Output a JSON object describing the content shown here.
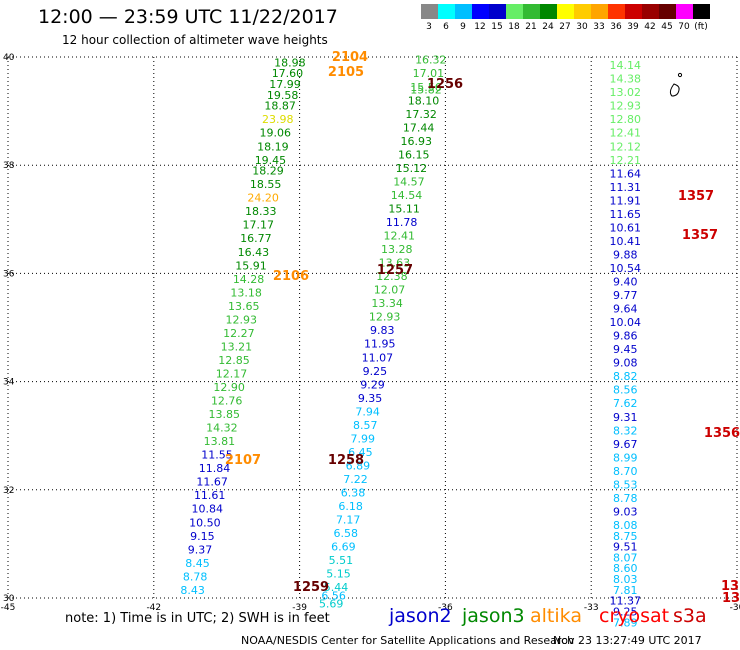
{
  "title": "12:00 — 23:59 UTC 11/22/2017",
  "subtitle": "12 hour collection of altimeter wave heights",
  "legend": {
    "colors": [
      "#888888",
      "#00ffff",
      "#00bfff",
      "#0000ff",
      "#0000cc",
      "#66ee66",
      "#33bb33",
      "#008800",
      "#ffff00",
      "#ffcc00",
      "#ffa500",
      "#ff3300",
      "#cc0000",
      "#990000",
      "#660000",
      "#ff00ff",
      "#000000"
    ],
    "labels": [
      "3",
      "6",
      "9",
      "12",
      "15",
      "18",
      "21",
      "24",
      "27",
      "30",
      "33",
      "36",
      "39",
      "42",
      "45",
      "70",
      "(ft)"
    ]
  },
  "map": {
    "lon_ticks": [
      "-45",
      "-42",
      "-39",
      "-36",
      "-33",
      "-30"
    ],
    "lat_ticks": [
      "40",
      "38",
      "36",
      "34",
      "32",
      "30"
    ]
  },
  "chart_data": {
    "type": "scatter",
    "xlabel": "",
    "ylabel": "",
    "xlim": [
      -45,
      -30
    ],
    "ylim": [
      30,
      40
    ],
    "grid": true,
    "series": [
      {
        "name": "jason2",
        "color": "#0000cc",
        "tracks": [
          {
            "id": "2104",
            "label_color": "#ff8c00"
          },
          {
            "id": "2105",
            "label_color": "#ff8c00"
          },
          {
            "id": "2106",
            "label_color": "#ff8c00"
          },
          {
            "id": "2107",
            "label_color": "#ff8c00"
          }
        ]
      },
      {
        "name": "jason3",
        "color": "#008800",
        "tracks": [
          {
            "id": "1256",
            "label_color": "#660000"
          },
          {
            "id": "1257",
            "label_color": "#660000"
          },
          {
            "id": "1258",
            "label_color": "#660000"
          },
          {
            "id": "1259",
            "label_color": "#660000"
          }
        ]
      },
      {
        "name": "altika",
        "color": "#ff8c00",
        "tracks": []
      },
      {
        "name": "cryosat",
        "color": "#ff0000",
        "tracks": [
          {
            "id": "1357",
            "label_color": "#cc0000"
          },
          {
            "id": "1356",
            "label_color": "#cc0000"
          },
          {
            "id": "13",
            "label_color": "#cc0000"
          }
        ]
      },
      {
        "name": "s3a",
        "color": "#cc0000",
        "tracks": []
      }
    ],
    "points": [
      {
        "v": "18.98",
        "c": "#008800",
        "lat": 39.9,
        "lon": -39.2
      },
      {
        "v": "17.60",
        "c": "#008800",
        "lat": 39.7,
        "lon": -39.25
      },
      {
        "v": "17.99",
        "c": "#008800",
        "lat": 39.5,
        "lon": -39.3
      },
      {
        "v": "19.58",
        "c": "#008800",
        "lat": 39.3,
        "lon": -39.35
      },
      {
        "v": "18.87",
        "c": "#008800",
        "lat": 39.1,
        "lon": -39.4
      },
      {
        "v": "23.98",
        "c": "#dddd00",
        "lat": 38.85,
        "lon": -39.45
      },
      {
        "v": "19.06",
        "c": "#008800",
        "lat": 38.6,
        "lon": -39.5
      },
      {
        "v": "18.19",
        "c": "#008800",
        "lat": 38.35,
        "lon": -39.55
      },
      {
        "v": "19.45",
        "c": "#008800",
        "lat": 38.1,
        "lon": -39.6
      },
      {
        "v": "18.29",
        "c": "#008800",
        "lat": 37.9,
        "lon": -39.65
      },
      {
        "v": "18.55",
        "c": "#008800",
        "lat": 37.65,
        "lon": -39.7
      },
      {
        "v": "24.20",
        "c": "#ffaa00",
        "lat": 37.4,
        "lon": -39.75
      },
      {
        "v": "18.33",
        "c": "#008800",
        "lat": 37.15,
        "lon": -39.8
      },
      {
        "v": "17.17",
        "c": "#008800",
        "lat": 36.9,
        "lon": -39.85
      },
      {
        "v": "16.77",
        "c": "#008800",
        "lat": 36.65,
        "lon": -39.9
      },
      {
        "v": "16.43",
        "c": "#008800",
        "lat": 36.4,
        "lon": -39.95
      },
      {
        "v": "15.91",
        "c": "#008800",
        "lat": 36.15,
        "lon": -40.0
      },
      {
        "v": "14.28",
        "c": "#33bb33",
        "lat": 35.9,
        "lon": -40.05
      },
      {
        "v": "13.18",
        "c": "#33bb33",
        "lat": 35.65,
        "lon": -40.1
      },
      {
        "v": "13.65",
        "c": "#33bb33",
        "lat": 35.4,
        "lon": -40.15
      },
      {
        "v": "12.93",
        "c": "#33bb33",
        "lat": 35.15,
        "lon": -40.2
      },
      {
        "v": "12.27",
        "c": "#33bb33",
        "lat": 34.9,
        "lon": -40.25
      },
      {
        "v": "13.21",
        "c": "#33bb33",
        "lat": 34.65,
        "lon": -40.3
      },
      {
        "v": "12.85",
        "c": "#33bb33",
        "lat": 34.4,
        "lon": -40.35
      },
      {
        "v": "12.17",
        "c": "#33bb33",
        "lat": 34.15,
        "lon": -40.4
      },
      {
        "v": "12.90",
        "c": "#33bb33",
        "lat": 33.9,
        "lon": -40.45
      },
      {
        "v": "12.76",
        "c": "#33bb33",
        "lat": 33.65,
        "lon": -40.5
      },
      {
        "v": "13.85",
        "c": "#33bb33",
        "lat": 33.4,
        "lon": -40.55
      },
      {
        "v": "14.32",
        "c": "#33bb33",
        "lat": 33.15,
        "lon": -40.6
      },
      {
        "v": "13.81",
        "c": "#33bb33",
        "lat": 32.9,
        "lon": -40.65
      },
      {
        "v": "11.55",
        "c": "#0000cc",
        "lat": 32.65,
        "lon": -40.7
      },
      {
        "v": "11.84",
        "c": "#0000cc",
        "lat": 32.4,
        "lon": -40.75
      },
      {
        "v": "11.67",
        "c": "#0000cc",
        "lat": 32.15,
        "lon": -40.8
      },
      {
        "v": "11.61",
        "c": "#0000cc",
        "lat": 31.9,
        "lon": -40.85
      },
      {
        "v": "10.84",
        "c": "#0000cc",
        "lat": 31.65,
        "lon": -40.9
      },
      {
        "v": "10.50",
        "c": "#0000cc",
        "lat": 31.4,
        "lon": -40.95
      },
      {
        "v": "9.15",
        "c": "#0000cc",
        "lat": 31.15,
        "lon": -41.0
      },
      {
        "v": "9.37",
        "c": "#0000cc",
        "lat": 30.9,
        "lon": -41.05
      },
      {
        "v": "8.45",
        "c": "#00bfff",
        "lat": 30.65,
        "lon": -41.1
      },
      {
        "v": "8.78",
        "c": "#00bfff",
        "lat": 30.4,
        "lon": -41.15
      },
      {
        "v": "8.43",
        "c": "#00bfff",
        "lat": 30.15,
        "lon": -41.2
      },
      {
        "v": "16.32",
        "c": "#33bb33",
        "lat": 39.95,
        "lon": -36.3
      },
      {
        "v": "17.01",
        "c": "#33bb33",
        "lat": 39.7,
        "lon": -36.35
      },
      {
        "v": "15.56",
        "c": "#33bb33",
        "lat": 39.45,
        "lon": -36.4
      },
      {
        "v": "15.82",
        "c": "#33bb33",
        "lat": 39.4,
        "lon": -36.4
      },
      {
        "v": "18.10",
        "c": "#008800",
        "lat": 39.2,
        "lon": -36.45
      },
      {
        "v": "17.32",
        "c": "#008800",
        "lat": 38.95,
        "lon": -36.5
      },
      {
        "v": "17.44",
        "c": "#008800",
        "lat": 38.7,
        "lon": -36.55
      },
      {
        "v": "16.93",
        "c": "#008800",
        "lat": 38.45,
        "lon": -36.6
      },
      {
        "v": "16.15",
        "c": "#008800",
        "lat": 38.2,
        "lon": -36.65
      },
      {
        "v": "15.12",
        "c": "#008800",
        "lat": 37.95,
        "lon": -36.7
      },
      {
        "v": "14.57",
        "c": "#33bb33",
        "lat": 37.7,
        "lon": -36.75
      },
      {
        "v": "14.54",
        "c": "#33bb33",
        "lat": 37.45,
        "lon": -36.8
      },
      {
        "v": "15.11",
        "c": "#008800",
        "lat": 37.2,
        "lon": -36.85
      },
      {
        "v": "11.78",
        "c": "#0000cc",
        "lat": 36.95,
        "lon": -36.9
      },
      {
        "v": "12.41",
        "c": "#33bb33",
        "lat": 36.7,
        "lon": -36.95
      },
      {
        "v": "13.28",
        "c": "#33bb33",
        "lat": 36.45,
        "lon": -37.0
      },
      {
        "v": "13.63",
        "c": "#33bb33",
        "lat": 36.2,
        "lon": -37.05
      },
      {
        "v": "12.38",
        "c": "#33bb33",
        "lat": 35.95,
        "lon": -37.1
      },
      {
        "v": "12.07",
        "c": "#33bb33",
        "lat": 35.7,
        "lon": -37.15
      },
      {
        "v": "13.34",
        "c": "#33bb33",
        "lat": 35.45,
        "lon": -37.2
      },
      {
        "v": "12.93",
        "c": "#33bb33",
        "lat": 35.2,
        "lon": -37.25
      },
      {
        "v": "9.83",
        "c": "#0000cc",
        "lat": 34.95,
        "lon": -37.3
      },
      {
        "v": "11.95",
        "c": "#0000cc",
        "lat": 34.7,
        "lon": -37.35
      },
      {
        "v": "11.07",
        "c": "#0000cc",
        "lat": 34.45,
        "lon": -37.4
      },
      {
        "v": "9.25",
        "c": "#0000cc",
        "lat": 34.2,
        "lon": -37.45
      },
      {
        "v": "9.29",
        "c": "#0000cc",
        "lat": 33.95,
        "lon": -37.5
      },
      {
        "v": "9.35",
        "c": "#0000cc",
        "lat": 33.7,
        "lon": -37.55
      },
      {
        "v": "7.94",
        "c": "#00bfff",
        "lat": 33.45,
        "lon": -37.6
      },
      {
        "v": "8.57",
        "c": "#00bfff",
        "lat": 33.2,
        "lon": -37.65
      },
      {
        "v": "7.99",
        "c": "#00bfff",
        "lat": 32.95,
        "lon": -37.7
      },
      {
        "v": "6.45",
        "c": "#00bfff",
        "lat": 32.7,
        "lon": -37.75
      },
      {
        "v": "6.89",
        "c": "#00bfff",
        "lat": 32.45,
        "lon": -37.8
      },
      {
        "v": "7.22",
        "c": "#00bfff",
        "lat": 32.2,
        "lon": -37.85
      },
      {
        "v": "6.38",
        "c": "#00bfff",
        "lat": 31.95,
        "lon": -37.9
      },
      {
        "v": "6.18",
        "c": "#00bfff",
        "lat": 31.7,
        "lon": -37.95
      },
      {
        "v": "7.17",
        "c": "#00bfff",
        "lat": 31.45,
        "lon": -38.0
      },
      {
        "v": "6.58",
        "c": "#00bfff",
        "lat": 31.2,
        "lon": -38.05
      },
      {
        "v": "6.69",
        "c": "#00bfff",
        "lat": 30.95,
        "lon": -38.1
      },
      {
        "v": "5.51",
        "c": "#00cccc",
        "lat": 30.7,
        "lon": -38.15
      },
      {
        "v": "5.15",
        "c": "#00cccc",
        "lat": 30.45,
        "lon": -38.2
      },
      {
        "v": "5.44",
        "c": "#00cccc",
        "lat": 30.2,
        "lon": -38.25
      },
      {
        "v": "6.56",
        "c": "#00bfff",
        "lat": 30.05,
        "lon": -38.3
      },
      {
        "v": "5.69",
        "c": "#00cccc",
        "lat": 29.9,
        "lon": -38.35
      },
      {
        "v": "14.14",
        "c": "#66ee66",
        "lat": 39.85,
        "lon": -32.3
      },
      {
        "v": "14.38",
        "c": "#66ee66",
        "lat": 39.6,
        "lon": -32.3
      },
      {
        "v": "13.02",
        "c": "#66ee66",
        "lat": 39.35,
        "lon": -32.3
      },
      {
        "v": "12.93",
        "c": "#66ee66",
        "lat": 39.1,
        "lon": -32.3
      },
      {
        "v": "12.80",
        "c": "#66ee66",
        "lat": 38.85,
        "lon": -32.3
      },
      {
        "v": "12.41",
        "c": "#66ee66",
        "lat": 38.6,
        "lon": -32.3
      },
      {
        "v": "12.12",
        "c": "#66ee66",
        "lat": 38.35,
        "lon": -32.3
      },
      {
        "v": "12.21",
        "c": "#66ee66",
        "lat": 38.1,
        "lon": -32.3
      },
      {
        "v": "11.64",
        "c": "#0000cc",
        "lat": 37.85,
        "lon": -32.3
      },
      {
        "v": "11.31",
        "c": "#0000cc",
        "lat": 37.6,
        "lon": -32.3
      },
      {
        "v": "11.91",
        "c": "#0000cc",
        "lat": 37.35,
        "lon": -32.3
      },
      {
        "v": "11.65",
        "c": "#0000cc",
        "lat": 37.1,
        "lon": -32.3
      },
      {
        "v": "10.61",
        "c": "#0000cc",
        "lat": 36.85,
        "lon": -32.3
      },
      {
        "v": "10.41",
        "c": "#0000cc",
        "lat": 36.6,
        "lon": -32.3
      },
      {
        "v": "9.88",
        "c": "#0000cc",
        "lat": 36.35,
        "lon": -32.3
      },
      {
        "v": "10.54",
        "c": "#0000cc",
        "lat": 36.1,
        "lon": -32.3
      },
      {
        "v": "9.40",
        "c": "#0000cc",
        "lat": 35.85,
        "lon": -32.3
      },
      {
        "v": "9.77",
        "c": "#0000cc",
        "lat": 35.6,
        "lon": -32.3
      },
      {
        "v": "9.64",
        "c": "#0000cc",
        "lat": 35.35,
        "lon": -32.3
      },
      {
        "v": "10.04",
        "c": "#0000cc",
        "lat": 35.1,
        "lon": -32.3
      },
      {
        "v": "9.86",
        "c": "#0000cc",
        "lat": 34.85,
        "lon": -32.3
      },
      {
        "v": "9.45",
        "c": "#0000cc",
        "lat": 34.6,
        "lon": -32.3
      },
      {
        "v": "9.08",
        "c": "#0000cc",
        "lat": 34.35,
        "lon": -32.3
      },
      {
        "v": "8.82",
        "c": "#00bfff",
        "lat": 34.1,
        "lon": -32.3
      },
      {
        "v": "8.56",
        "c": "#00bfff",
        "lat": 33.85,
        "lon": -32.3
      },
      {
        "v": "7.62",
        "c": "#00bfff",
        "lat": 33.6,
        "lon": -32.3
      },
      {
        "v": "9.31",
        "c": "#0000cc",
        "lat": 33.35,
        "lon": -32.3
      },
      {
        "v": "8.32",
        "c": "#00bfff",
        "lat": 33.1,
        "lon": -32.3
      },
      {
        "v": "9.67",
        "c": "#0000cc",
        "lat": 32.85,
        "lon": -32.3
      },
      {
        "v": "8.99",
        "c": "#00bfff",
        "lat": 32.6,
        "lon": -32.3
      },
      {
        "v": "8.70",
        "c": "#00bfff",
        "lat": 32.35,
        "lon": -32.3
      },
      {
        "v": "8.53",
        "c": "#00bfff",
        "lat": 32.1,
        "lon": -32.3
      },
      {
        "v": "8.78",
        "c": "#00bfff",
        "lat": 31.85,
        "lon": -32.3
      },
      {
        "v": "9.03",
        "c": "#0000cc",
        "lat": 31.6,
        "lon": -32.3
      },
      {
        "v": "8.08",
        "c": "#00bfff",
        "lat": 31.35,
        "lon": -32.3
      },
      {
        "v": "8.75",
        "c": "#00bfff",
        "lat": 31.15,
        "lon": -32.3
      },
      {
        "v": "9.51",
        "c": "#0000cc",
        "lat": 30.95,
        "lon": -32.3
      },
      {
        "v": "8.07",
        "c": "#00bfff",
        "lat": 30.75,
        "lon": -32.3
      },
      {
        "v": "8.60",
        "c": "#00bfff",
        "lat": 30.55,
        "lon": -32.3
      },
      {
        "v": "8.03",
        "c": "#00bfff",
        "lat": 30.35,
        "lon": -32.3
      },
      {
        "v": "7.81",
        "c": "#00bfff",
        "lat": 30.15,
        "lon": -32.3
      },
      {
        "v": "11.37",
        "c": "#0000cc",
        "lat": 29.95,
        "lon": -32.3
      },
      {
        "v": "9.25",
        "c": "#0000cc",
        "lat": 29.75,
        "lon": -32.3
      },
      {
        "v": "7.89",
        "c": "#00bfff",
        "lat": 29.55,
        "lon": -32.3
      }
    ],
    "track_labels": [
      {
        "text": "2104",
        "c": "#ff8c00"
      },
      {
        "text": "2105",
        "c": "#ff8c00"
      },
      {
        "text": "1256",
        "c": "#660000"
      },
      {
        "text": "2106",
        "c": "#ff8c00"
      },
      {
        "text": "1257",
        "c": "#660000"
      },
      {
        "text": "2107",
        "c": "#ff8c00"
      },
      {
        "text": "1258",
        "c": "#660000"
      },
      {
        "text": "1259",
        "c": "#660000"
      },
      {
        "text": "1357",
        "c": "#cc0000"
      },
      {
        "text": "1357",
        "c": "#cc0000"
      },
      {
        "text": "1356",
        "c": "#cc0000"
      },
      {
        "text": "13",
        "c": "#cc0000"
      },
      {
        "text": "13",
        "c": "#cc0000"
      }
    ]
  },
  "footer": {
    "note": "note:  1) Time is in UTC;  2) SWH is in feet",
    "missions": [
      {
        "name": "jason2",
        "color": "#0000cc"
      },
      {
        "name": "jason3",
        "color": "#008800"
      },
      {
        "name": "altika",
        "color": "#ff8c00"
      },
      {
        "name": "cryosat",
        "color": "#ff0000"
      },
      {
        "name": "s3a",
        "color": "#cc0000"
      }
    ],
    "credit": "NOAA/NESDIS Center for Satellite Applications and Research",
    "timestamp": "Nov 23 13:27:49 UTC 2017"
  }
}
